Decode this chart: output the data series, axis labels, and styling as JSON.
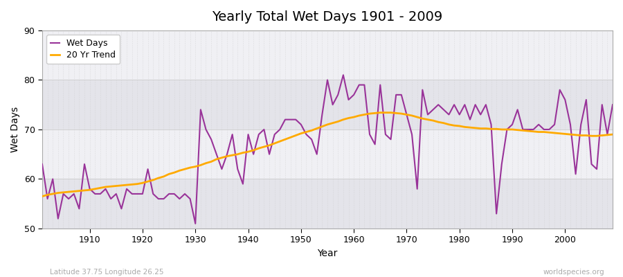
{
  "title": "Yearly Total Wet Days 1901 - 2009",
  "xlabel": "Year",
  "ylabel": "Wet Days",
  "subtitle": "Latitude 37.75 Longitude 26.25",
  "watermark": "worldspecies.org",
  "ylim": [
    50,
    90
  ],
  "xlim": [
    1901,
    2009
  ],
  "yticks": [
    50,
    60,
    70,
    80,
    90
  ],
  "wet_days_color": "#993399",
  "trend_color": "#ffaa00",
  "bg_color": "#f5f5f8",
  "band_color_light": "#f0f0f4",
  "band_color_dark": "#e4e4ea",
  "wet_days": {
    "1901": 63,
    "1902": 56,
    "1903": 60,
    "1904": 52,
    "1905": 57,
    "1906": 56,
    "1907": 57,
    "1908": 54,
    "1909": 63,
    "1910": 58,
    "1911": 57,
    "1912": 57,
    "1913": 58,
    "1914": 56,
    "1915": 57,
    "1916": 54,
    "1917": 58,
    "1918": 57,
    "1919": 57,
    "1920": 57,
    "1921": 62,
    "1922": 57,
    "1923": 56,
    "1924": 56,
    "1925": 57,
    "1926": 57,
    "1927": 56,
    "1928": 57,
    "1929": 56,
    "1930": 51,
    "1931": 74,
    "1932": 70,
    "1933": 68,
    "1934": 65,
    "1935": 62,
    "1936": 65,
    "1937": 69,
    "1938": 62,
    "1939": 59,
    "1940": 69,
    "1941": 65,
    "1942": 69,
    "1943": 70,
    "1944": 65,
    "1945": 69,
    "1946": 70,
    "1947": 72,
    "1948": 72,
    "1949": 72,
    "1950": 71,
    "1951": 69,
    "1952": 68,
    "1953": 65,
    "1954": 73,
    "1955": 80,
    "1956": 75,
    "1957": 77,
    "1958": 81,
    "1959": 76,
    "1960": 77,
    "1961": 79,
    "1962": 79,
    "1963": 69,
    "1964": 67,
    "1965": 79,
    "1966": 69,
    "1967": 68,
    "1968": 77,
    "1969": 77,
    "1970": 73,
    "1971": 69,
    "1972": 58,
    "1973": 78,
    "1974": 73,
    "1975": 74,
    "1976": 75,
    "1977": 74,
    "1978": 73,
    "1979": 75,
    "1980": 73,
    "1981": 75,
    "1982": 72,
    "1983": 75,
    "1984": 73,
    "1985": 75,
    "1986": 71,
    "1987": 53,
    "1988": 63,
    "1989": 70,
    "1990": 71,
    "1991": 74,
    "1992": 70,
    "1993": 70,
    "1994": 70,
    "1995": 71,
    "1996": 70,
    "1997": 70,
    "1998": 71,
    "1999": 78,
    "2000": 76,
    "2001": 71,
    "2002": 61,
    "2003": 71,
    "2004": 76,
    "2005": 63,
    "2006": 62,
    "2007": 75,
    "2008": 69,
    "2009": 75
  },
  "trend": {
    "1901": 56.5,
    "1902": 56.8,
    "1903": 57.0,
    "1904": 57.2,
    "1905": 57.3,
    "1906": 57.4,
    "1907": 57.5,
    "1908": 57.6,
    "1909": 57.7,
    "1910": 57.8,
    "1911": 58.0,
    "1912": 58.2,
    "1913": 58.4,
    "1914": 58.5,
    "1915": 58.6,
    "1916": 58.7,
    "1917": 58.8,
    "1918": 58.9,
    "1919": 59.0,
    "1920": 59.2,
    "1921": 59.5,
    "1922": 59.8,
    "1923": 60.2,
    "1924": 60.5,
    "1925": 61.0,
    "1926": 61.3,
    "1927": 61.7,
    "1928": 62.0,
    "1929": 62.3,
    "1930": 62.5,
    "1931": 62.8,
    "1932": 63.2,
    "1933": 63.5,
    "1934": 64.0,
    "1935": 64.3,
    "1936": 64.6,
    "1937": 64.8,
    "1938": 65.0,
    "1939": 65.3,
    "1940": 65.5,
    "1941": 65.8,
    "1942": 66.2,
    "1943": 66.5,
    "1944": 66.8,
    "1945": 67.2,
    "1946": 67.6,
    "1947": 68.0,
    "1948": 68.4,
    "1949": 68.8,
    "1950": 69.2,
    "1951": 69.5,
    "1952": 69.8,
    "1953": 70.2,
    "1954": 70.6,
    "1955": 71.0,
    "1956": 71.3,
    "1957": 71.6,
    "1958": 72.0,
    "1959": 72.3,
    "1960": 72.5,
    "1961": 72.8,
    "1962": 73.0,
    "1963": 73.2,
    "1964": 73.3,
    "1965": 73.4,
    "1966": 73.4,
    "1967": 73.4,
    "1968": 73.3,
    "1969": 73.2,
    "1970": 73.0,
    "1971": 72.8,
    "1972": 72.5,
    "1973": 72.2,
    "1974": 72.0,
    "1975": 71.8,
    "1976": 71.5,
    "1977": 71.3,
    "1978": 71.0,
    "1979": 70.8,
    "1980": 70.7,
    "1981": 70.5,
    "1982": 70.4,
    "1983": 70.3,
    "1984": 70.2,
    "1985": 70.2,
    "1986": 70.1,
    "1987": 70.1,
    "1988": 70.0,
    "1989": 70.0,
    "1990": 70.0,
    "1991": 69.9,
    "1992": 69.8,
    "1993": 69.7,
    "1994": 69.6,
    "1995": 69.5,
    "1996": 69.5,
    "1997": 69.4,
    "1998": 69.3,
    "1999": 69.2,
    "2000": 69.1,
    "2001": 69.0,
    "2002": 68.9,
    "2003": 68.8,
    "2004": 68.8,
    "2005": 68.7,
    "2006": 68.7,
    "2007": 68.8,
    "2008": 68.9,
    "2009": 69.0
  }
}
